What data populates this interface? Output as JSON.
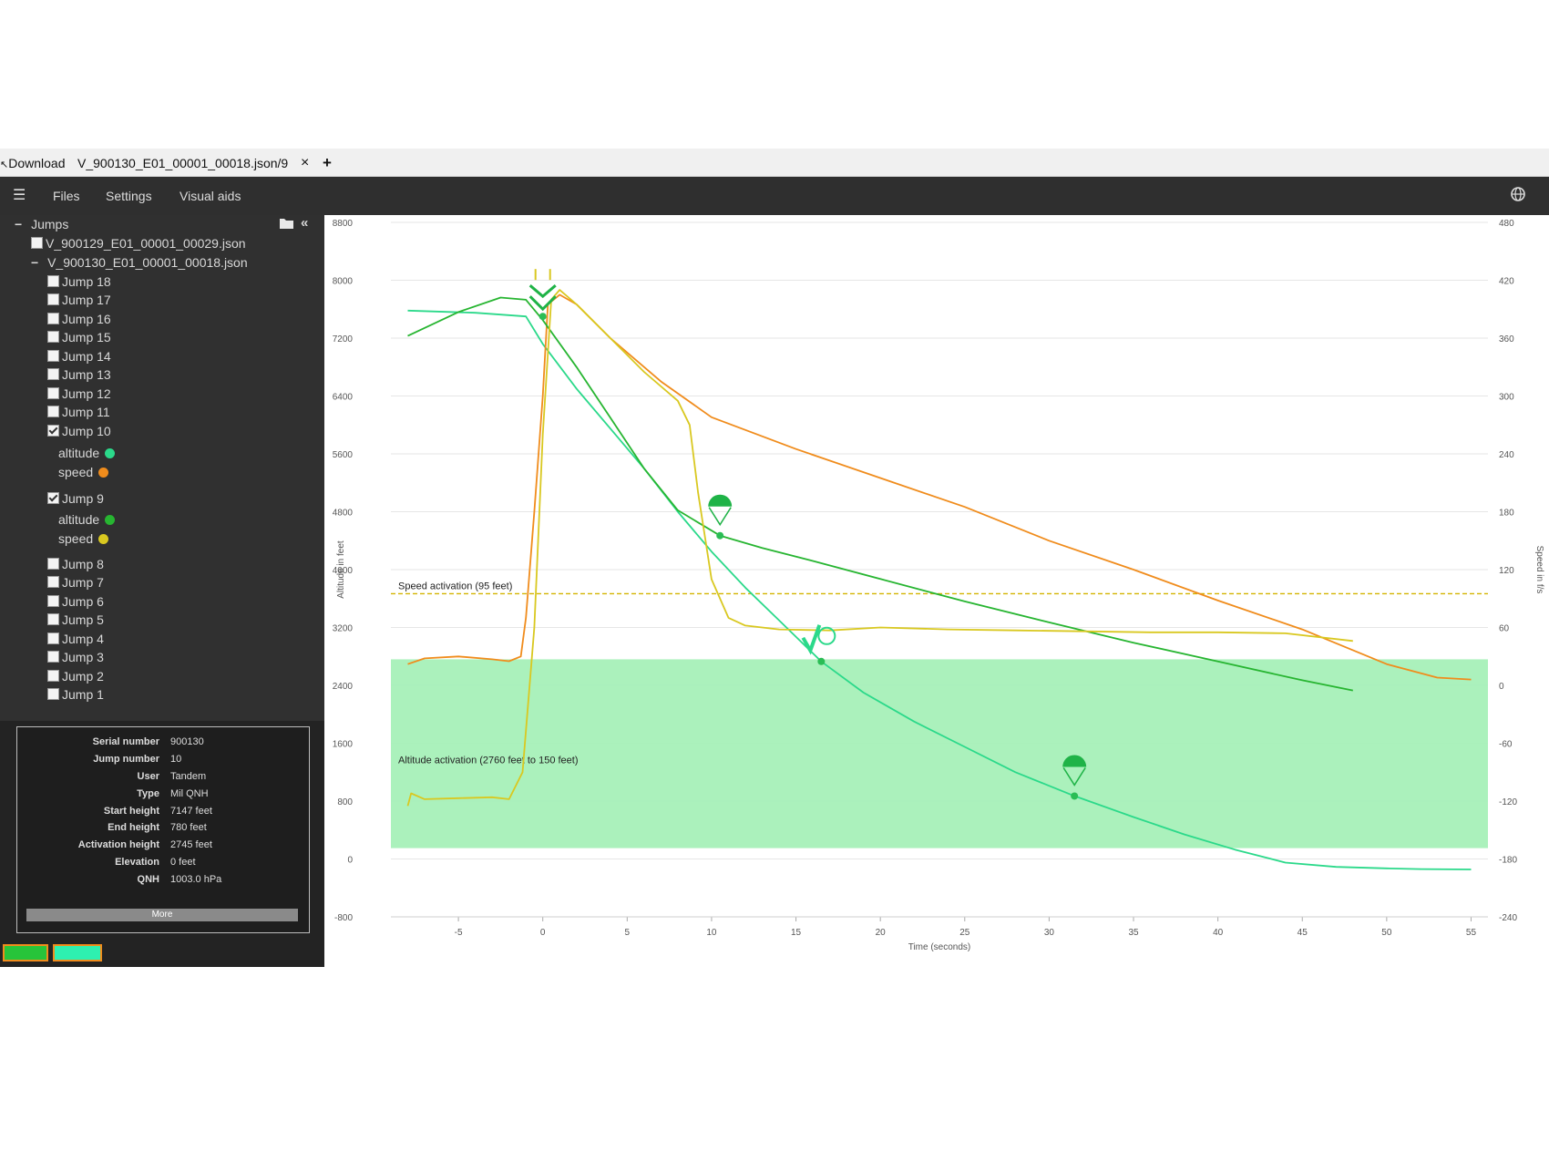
{
  "tabs": {
    "download": "Download",
    "file": "V_900130_E01_00001_00018.json/9",
    "close": "×",
    "add": "+"
  },
  "menu": {
    "files": "Files",
    "settings": "Settings",
    "visual_aids": "Visual aids"
  },
  "sidebar": {
    "root": "Jumps",
    "file1": "V_900129_E01_00001_00029.json",
    "file2": "V_900130_E01_00001_00018.json",
    "jumps": [
      "Jump 18",
      "Jump 17",
      "Jump 16",
      "Jump 15",
      "Jump 14",
      "Jump 13",
      "Jump 12",
      "Jump 11",
      "Jump 10",
      "Jump 9",
      "Jump 8",
      "Jump 7",
      "Jump 6",
      "Jump 5",
      "Jump 4",
      "Jump 3",
      "Jump 2",
      "Jump 1"
    ],
    "series_altitude": "altitude",
    "series_speed": "speed"
  },
  "info": {
    "labels": [
      "Serial number",
      "Jump number",
      "User",
      "Type",
      "Start height",
      "End height",
      "Activation height",
      "Elevation",
      "QNH"
    ],
    "values": [
      "900130",
      "10",
      "Tandem",
      "Mil QNH",
      "7147 feet",
      "780 feet",
      "2745 feet",
      "0 feet",
      "1003.0 hPa"
    ],
    "more": "More"
  },
  "colors": {
    "accent": "#2bd98a",
    "jump10_speed": "#f08c1c",
    "jump9_altitude": "#27b531",
    "jump9_speed": "#d9c820",
    "band": "#a6f0b8"
  },
  "chart_data": {
    "type": "line",
    "xlabel": "Time (seconds)",
    "ylabel": "Altitude in feet",
    "y2label": "Speed in f/s",
    "xlim": [
      -9,
      56
    ],
    "ylim": [
      -800,
      8800
    ],
    "y2lim": [
      -240,
      480
    ],
    "xticks": [
      -5,
      0,
      5,
      10,
      15,
      20,
      25,
      30,
      35,
      40,
      45,
      50,
      55
    ],
    "yticks": [
      -800,
      0,
      800,
      1600,
      2400,
      3200,
      4000,
      4800,
      5600,
      6400,
      7200,
      8000,
      8800
    ],
    "y2ticks": [
      -240,
      -180,
      -120,
      -60,
      0,
      60,
      120,
      180,
      240,
      300,
      360,
      420,
      480
    ],
    "annotations": {
      "speed_activation": "Speed activation (95 feet)",
      "altitude_activation": "Altitude activation (2760 feet to 150 feet)"
    },
    "speed_activation_y2": 95,
    "altitude_band": [
      150,
      2760
    ],
    "series": [
      {
        "color": "#2bd98a",
        "axis": "y",
        "x": [
          -8,
          -4,
          -1,
          0,
          2,
          4,
          6,
          8,
          10,
          12,
          14,
          16.5,
          19,
          22,
          25,
          28,
          31.5,
          35,
          38,
          41,
          44,
          47,
          50,
          52,
          55
        ],
        "values": [
          7580,
          7550,
          7500,
          7120,
          6500,
          5950,
          5400,
          4800,
          4250,
          3750,
          3300,
          2730,
          2300,
          1900,
          1550,
          1200,
          870,
          580,
          340,
          130,
          -50,
          -110,
          -130,
          -140,
          -145
        ]
      },
      {
        "color": "#f08c1c",
        "axis": "y2",
        "x": [
          -8,
          -7,
          -5,
          -3,
          -2,
          -1.3,
          -1,
          -0.5,
          0,
          0.3,
          1,
          2,
          4,
          7,
          10,
          15,
          20,
          25,
          30,
          35,
          40,
          45,
          50,
          53,
          55
        ],
        "values": [
          22,
          28,
          30,
          27,
          25,
          30,
          70,
          180,
          300,
          395,
          405,
          395,
          360,
          315,
          278,
          245,
          215,
          185,
          150,
          120,
          88,
          58,
          22,
          8,
          6
        ]
      },
      {
        "color": "#27b531",
        "axis": "y",
        "x": [
          -8,
          -5,
          -2.5,
          -1,
          0,
          2,
          4,
          6,
          8,
          10.5,
          13,
          16,
          20,
          25,
          30,
          35,
          40,
          45,
          48
        ],
        "values": [
          7230,
          7560,
          7760,
          7730,
          7450,
          6800,
          6100,
          5400,
          4820,
          4470,
          4300,
          4120,
          3870,
          3560,
          3270,
          2990,
          2730,
          2470,
          2330
        ]
      },
      {
        "color": "#d9c820",
        "axis": "y2",
        "x": [
          -8,
          -7.8,
          -7,
          -5,
          -3,
          -2,
          -1.2,
          -0.5,
          0,
          0.5,
          1,
          2,
          4,
          6,
          8,
          8.7,
          9.2,
          10,
          11,
          12,
          14,
          17,
          20,
          24,
          28,
          32,
          36,
          40,
          44,
          48
        ],
        "values": [
          -125,
          -112,
          -118,
          -117,
          -116,
          -118,
          -90,
          60,
          260,
          400,
          410,
          395,
          360,
          325,
          295,
          270,
          200,
          110,
          70,
          62,
          58,
          57,
          60,
          58,
          57,
          56,
          55,
          55,
          54,
          46
        ]
      }
    ],
    "markers": [
      {
        "x": 0,
        "y": 7500,
        "label": "exit"
      },
      {
        "x": 10.5,
        "y": 4470,
        "label": "parachute"
      },
      {
        "x": 16.5,
        "y": 2730,
        "label": "activation"
      },
      {
        "x": 31.5,
        "y": 870,
        "label": "parachute"
      }
    ]
  }
}
